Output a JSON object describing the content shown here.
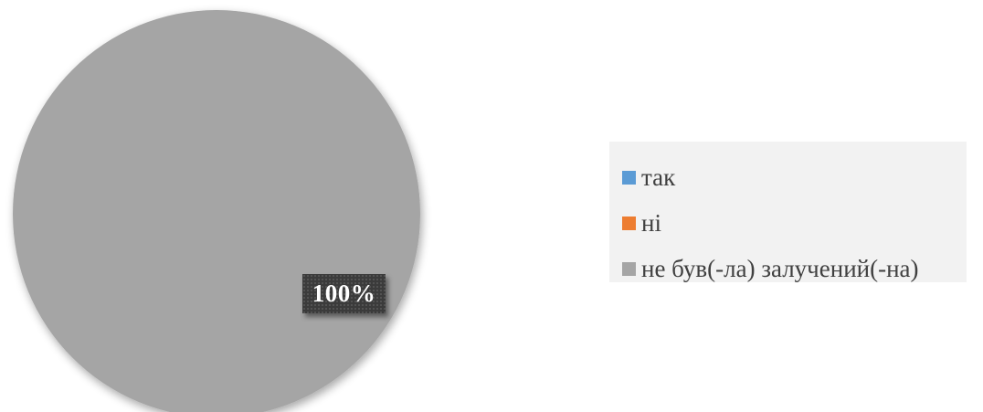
{
  "chart_data": {
    "type": "pie",
    "categories": [
      "так",
      "ні",
      "не був(-ла) залучений(-на)"
    ],
    "values": [
      0,
      0,
      100
    ],
    "colors": [
      "#5b9bd5",
      "#ed7d31",
      "#a5a5a5"
    ],
    "data_labels": [
      "",
      "",
      "100%"
    ],
    "legend_position": "right"
  }
}
